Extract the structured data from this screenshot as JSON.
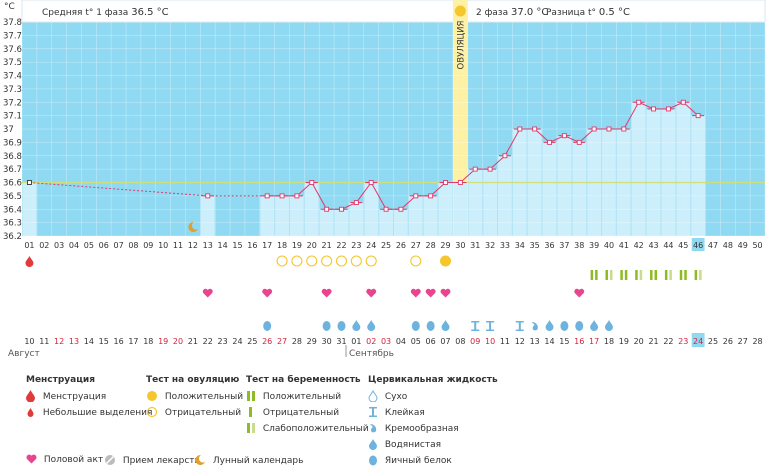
{
  "chart_data": {
    "type": "line",
    "y_unit": "°C",
    "ylim": [
      36.2,
      37.8
    ],
    "yticks": [
      "37.8",
      "37.7",
      "37.6",
      "37.5",
      "37.4",
      "37.3",
      "37.2",
      "37.1",
      "37",
      "36.9",
      "36.8",
      "36.7",
      "36.6",
      "36.5",
      "36.4",
      "36.3",
      "36.2"
    ],
    "cycle_days": [
      "01",
      "02",
      "03",
      "04",
      "05",
      "06",
      "07",
      "08",
      "09",
      "10",
      "11",
      "12",
      "13",
      "14",
      "15",
      "16",
      "17",
      "18",
      "19",
      "20",
      "21",
      "22",
      "23",
      "24",
      "25",
      "26",
      "27",
      "28",
      "29",
      "30",
      "31",
      "32",
      "33",
      "34",
      "35",
      "36",
      "37",
      "38",
      "39",
      "40",
      "41",
      "42",
      "43",
      "44",
      "45",
      "46",
      "47",
      "48",
      "49",
      "50"
    ],
    "dates": [
      "10",
      "11",
      "12",
      "13",
      "14",
      "15",
      "16",
      "17",
      "18",
      "19",
      "20",
      "21",
      "22",
      "23",
      "24",
      "25",
      "26",
      "27",
      "28",
      "29",
      "30",
      "31",
      "01",
      "02",
      "03",
      "04",
      "05",
      "06",
      "07",
      "08",
      "09",
      "10",
      "11",
      "12",
      "13",
      "14",
      "15",
      "16",
      "17",
      "18",
      "19",
      "20",
      "21",
      "22",
      "23",
      "24",
      "25",
      "26",
      "27",
      "28"
    ],
    "months": [
      "Август",
      "Сентябрь"
    ],
    "series": [
      {
        "values": [
          36.6,
          null,
          null,
          null,
          null,
          null,
          null,
          null,
          null,
          null,
          null,
          null,
          36.5,
          null,
          null,
          null,
          36.5,
          36.5,
          36.5,
          36.6,
          36.4,
          36.4,
          36.45,
          36.6,
          36.4,
          36.4,
          36.5,
          36.5,
          36.6,
          36.6,
          36.7,
          36.7,
          36.8,
          37.0,
          37.0,
          36.9,
          36.95,
          36.9,
          37.0,
          37.0,
          37.0,
          37.2,
          37.15,
          37.15,
          37.2,
          37.1,
          null,
          null,
          null,
          null
        ]
      }
    ],
    "coverline": 36.6,
    "ovulation_day": "30",
    "ovulation_label": "ОВУЛЯЦИЯ",
    "current_day": "46",
    "current_date": "24"
  },
  "phase1": {
    "label": "Средняя t° 1 фаза",
    "value": "36.5 °C"
  },
  "phase2": {
    "label": "2 фаза",
    "value": "37.0 °C",
    "diff_label": "Разница t°",
    "diff_value": "0.5 °C"
  },
  "markers": {
    "menstruation_days": [
      1
    ],
    "ovulation_negative_days": [
      18,
      19,
      20,
      21,
      22,
      23,
      24,
      27
    ],
    "ovulation_positive_days": [
      29
    ],
    "intercourse_days": [
      13,
      17,
      21,
      24,
      27,
      28,
      29,
      38
    ],
    "pregnancy_positive_days": [
      39,
      41,
      43,
      45
    ],
    "pregnancy_weak_days": [
      40,
      42,
      44,
      46
    ],
    "moon_days": [
      12
    ],
    "cervical": [
      {
        "day": 17,
        "type": "egg"
      },
      {
        "day": 21,
        "type": "egg"
      },
      {
        "day": 22,
        "type": "egg"
      },
      {
        "day": 23,
        "type": "water"
      },
      {
        "day": 24,
        "type": "water"
      },
      {
        "day": 27,
        "type": "egg"
      },
      {
        "day": 28,
        "type": "egg"
      },
      {
        "day": 29,
        "type": "water"
      },
      {
        "day": 31,
        "type": "sticky"
      },
      {
        "day": 32,
        "type": "sticky"
      },
      {
        "day": 34,
        "type": "sticky"
      },
      {
        "day": 35,
        "type": "creamy"
      },
      {
        "day": 36,
        "type": "water"
      },
      {
        "day": 37,
        "type": "egg"
      },
      {
        "day": 38,
        "type": "egg"
      },
      {
        "day": 39,
        "type": "water"
      },
      {
        "day": 40,
        "type": "water"
      }
    ]
  },
  "legend": {
    "menstruation": {
      "title": "Менструация",
      "items": [
        "Менструация",
        "Небольшие выделения"
      ]
    },
    "ovulation_test": {
      "title": "Тест на овуляцию",
      "items": [
        "Положительный",
        "Отрицательный"
      ]
    },
    "pregnancy_test": {
      "title": "Тест на беременность",
      "items": [
        "Положительный",
        "Отрицательный",
        "Слабоположительный"
      ]
    },
    "cervical": {
      "title": "Цервикальная жидкость",
      "items": [
        "Сухо",
        "Клейкая",
        "Кремообразная",
        "Водянистая",
        "Яичный белок"
      ]
    },
    "intercourse": "Половой акт",
    "medicine": "Прием лекарств",
    "moon": "Лунный календарь"
  },
  "colors": {
    "plot_bg": "#8fd9f2",
    "bar_fill": "#cdeefb",
    "line": "#e2386a",
    "coverline": "#cfe07a",
    "ovulation_band": "#fdf1a6",
    "ovulation_dot": "#f6c62d",
    "pregnancy_pos": "#8dbb25",
    "pregnancy_weak": "#c9dc8d",
    "heart": "#e8448f",
    "drop": "#6db3de",
    "weekend": "#d0233b",
    "menstruation": "#e23a3a"
  }
}
